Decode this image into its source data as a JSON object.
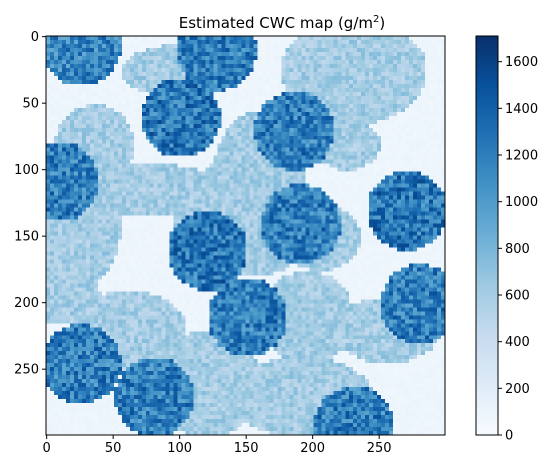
{
  "chart_data": {
    "type": "heatmap",
    "title": "Estimated CWC map (g/m²)",
    "title_main": "Estimated CWC map (g/m",
    "title_sup": "2",
    "title_end": ")",
    "xlabel": "",
    "ylabel": "",
    "colormap": "Blues",
    "grid_size": [
      300,
      300
    ],
    "xlim": [
      0,
      299
    ],
    "ylim": [
      299,
      0
    ],
    "x_ticks": [
      0,
      50,
      100,
      150,
      200,
      250
    ],
    "y_ticks": [
      0,
      50,
      100,
      150,
      200,
      250
    ],
    "x_tick_labels": [
      "0",
      "50",
      "100",
      "150",
      "200",
      "250"
    ],
    "y_tick_labels": [
      "0",
      "50",
      "100",
      "150",
      "200",
      "250"
    ],
    "colorbar": {
      "min": 0,
      "max": 1710,
      "ticks": [
        0,
        200,
        400,
        600,
        800,
        1000,
        1200,
        1400,
        1600
      ],
      "tick_labels": [
        "0",
        "200",
        "400",
        "600",
        "800",
        "1000",
        "1200",
        "1400",
        "1600"
      ]
    },
    "regions": [
      {
        "level": "high",
        "approx_value": 1150,
        "center": [
          25,
          6
        ],
        "extent": "top-left cluster"
      },
      {
        "level": "high",
        "approx_value": 1200,
        "center": [
          127,
          10
        ],
        "extent": "top center blob"
      },
      {
        "level": "high",
        "approx_value": 1250,
        "center": [
          100,
          60
        ],
        "extent": "upper-left center"
      },
      {
        "level": "high",
        "approx_value": 1200,
        "center": [
          185,
          70
        ],
        "extent": "upper center"
      },
      {
        "level": "high",
        "approx_value": 1200,
        "center": [
          8,
          108
        ],
        "extent": "left edge"
      },
      {
        "level": "high",
        "approx_value": 1250,
        "center": [
          120,
          160
        ],
        "extent": "center-left large"
      },
      {
        "level": "high",
        "approx_value": 1250,
        "center": [
          270,
          130
        ],
        "extent": "right large"
      },
      {
        "level": "high",
        "approx_value": 1200,
        "center": [
          190,
          140
        ],
        "extent": "center small"
      },
      {
        "level": "high",
        "approx_value": 1200,
        "center": [
          150,
          210
        ],
        "extent": "center lower"
      },
      {
        "level": "high",
        "approx_value": 1200,
        "center": [
          25,
          245
        ],
        "extent": "bottom-left"
      },
      {
        "level": "high",
        "approx_value": 1200,
        "center": [
          80,
          270
        ],
        "extent": "bottom"
      },
      {
        "level": "high",
        "approx_value": 1200,
        "center": [
          230,
          292
        ],
        "extent": "bottom right edge"
      },
      {
        "level": "high",
        "approx_value": 1200,
        "center": [
          280,
          200
        ],
        "extent": "right lower"
      }
    ]
  }
}
